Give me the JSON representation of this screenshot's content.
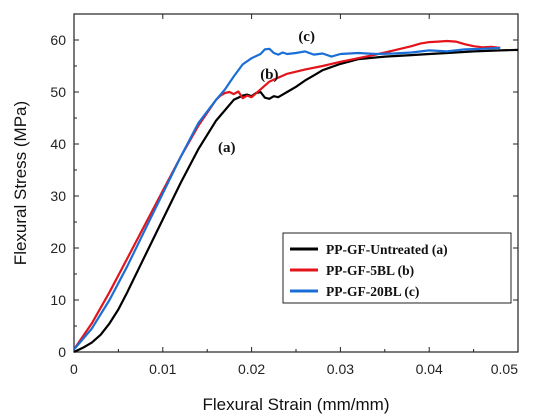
{
  "chart_data": {
    "type": "line",
    "xlabel": "Flexural Strain (mm/mm)",
    "ylabel": "Flexural Stress (MPa)",
    "xlim": [
      0,
      0.05
    ],
    "ylim": [
      0,
      65
    ],
    "xticks": [
      0,
      0.01,
      0.02,
      0.03,
      0.04,
      0.05
    ],
    "xtick_labels": [
      "0",
      "0.01",
      "0.02",
      "0.03",
      "0.04",
      "0.05"
    ],
    "yticks": [
      0,
      10,
      20,
      30,
      40,
      50,
      60
    ],
    "ytick_labels": [
      "0",
      "10",
      "20",
      "30",
      "40",
      "50",
      "60"
    ],
    "grid": false,
    "legend_position": "bottom-right",
    "series": [
      {
        "name": "PP-GF-Untreated (a)",
        "color": "#000000",
        "annotation": "(a)",
        "x": [
          0,
          0.001,
          0.002,
          0.003,
          0.004,
          0.005,
          0.006,
          0.008,
          0.01,
          0.012,
          0.014,
          0.016,
          0.018,
          0.019,
          0.0195,
          0.02,
          0.0205,
          0.021,
          0.0215,
          0.022,
          0.0225,
          0.023,
          0.0235,
          0.024,
          0.025,
          0.026,
          0.027,
          0.028,
          0.03,
          0.032,
          0.035,
          0.038,
          0.04,
          0.042,
          0.045,
          0.048,
          0.05
        ],
        "y": [
          0,
          0.8,
          1.8,
          3.3,
          5.5,
          8.2,
          11.5,
          18.5,
          25.5,
          32.5,
          39.0,
          44.5,
          48.5,
          49.3,
          49.5,
          49.2,
          49.8,
          50.0,
          48.9,
          48.7,
          49.2,
          49.0,
          49.5,
          50.0,
          51.0,
          52.2,
          53.2,
          54.2,
          55.4,
          56.3,
          56.8,
          57.1,
          57.3,
          57.5,
          57.8,
          58.0,
          58.1
        ]
      },
      {
        "name": "PP-GF-5BL (b)",
        "color": "#e3141b",
        "annotation": "(b)",
        "x": [
          0,
          0.002,
          0.004,
          0.006,
          0.008,
          0.01,
          0.012,
          0.014,
          0.016,
          0.0165,
          0.017,
          0.0175,
          0.018,
          0.0185,
          0.019,
          0.0195,
          0.02,
          0.021,
          0.022,
          0.024,
          0.026,
          0.028,
          0.03,
          0.032,
          0.034,
          0.036,
          0.038,
          0.039,
          0.04,
          0.041,
          0.042,
          0.043,
          0.044,
          0.045,
          0.046,
          0.047,
          0.048
        ],
        "y": [
          0.5,
          5.5,
          11.5,
          18.0,
          24.5,
          31.0,
          37.5,
          43.5,
          48.5,
          49.3,
          49.8,
          50.0,
          49.6,
          50.1,
          48.8,
          49.3,
          49.0,
          50.5,
          52.0,
          53.5,
          54.3,
          55.0,
          55.8,
          56.5,
          57.2,
          58.0,
          58.8,
          59.3,
          59.6,
          59.7,
          59.8,
          59.7,
          59.2,
          58.8,
          58.6,
          58.7,
          58.5
        ]
      },
      {
        "name": "PP-GF-20BL (c)",
        "color": "#1a6fd6",
        "annotation": "(c)",
        "x": [
          0,
          0.002,
          0.004,
          0.006,
          0.008,
          0.01,
          0.012,
          0.014,
          0.016,
          0.017,
          0.018,
          0.019,
          0.02,
          0.021,
          0.0215,
          0.022,
          0.0225,
          0.023,
          0.0235,
          0.024,
          0.025,
          0.026,
          0.027,
          0.028,
          0.029,
          0.03,
          0.032,
          0.034,
          0.036,
          0.038,
          0.04,
          0.042,
          0.044,
          0.046,
          0.047,
          0.048
        ],
        "y": [
          0.5,
          4.5,
          10.0,
          16.5,
          23.5,
          30.5,
          37.5,
          44.0,
          48.5,
          50.5,
          53.0,
          55.3,
          56.5,
          57.3,
          58.2,
          58.3,
          57.5,
          57.2,
          57.6,
          57.3,
          57.5,
          57.8,
          57.2,
          57.4,
          56.8,
          57.3,
          57.5,
          57.3,
          57.4,
          57.6,
          58.0,
          57.8,
          58.2,
          58.3,
          58.4,
          58.5
        ]
      }
    ],
    "annotations": [
      {
        "text": "(a)",
        "x": 0.0172,
        "y": 38.5
      },
      {
        "text": "(b)",
        "x": 0.022,
        "y": 52.5
      },
      {
        "text": "(c)",
        "x": 0.0262,
        "y": 59.8
      }
    ]
  }
}
